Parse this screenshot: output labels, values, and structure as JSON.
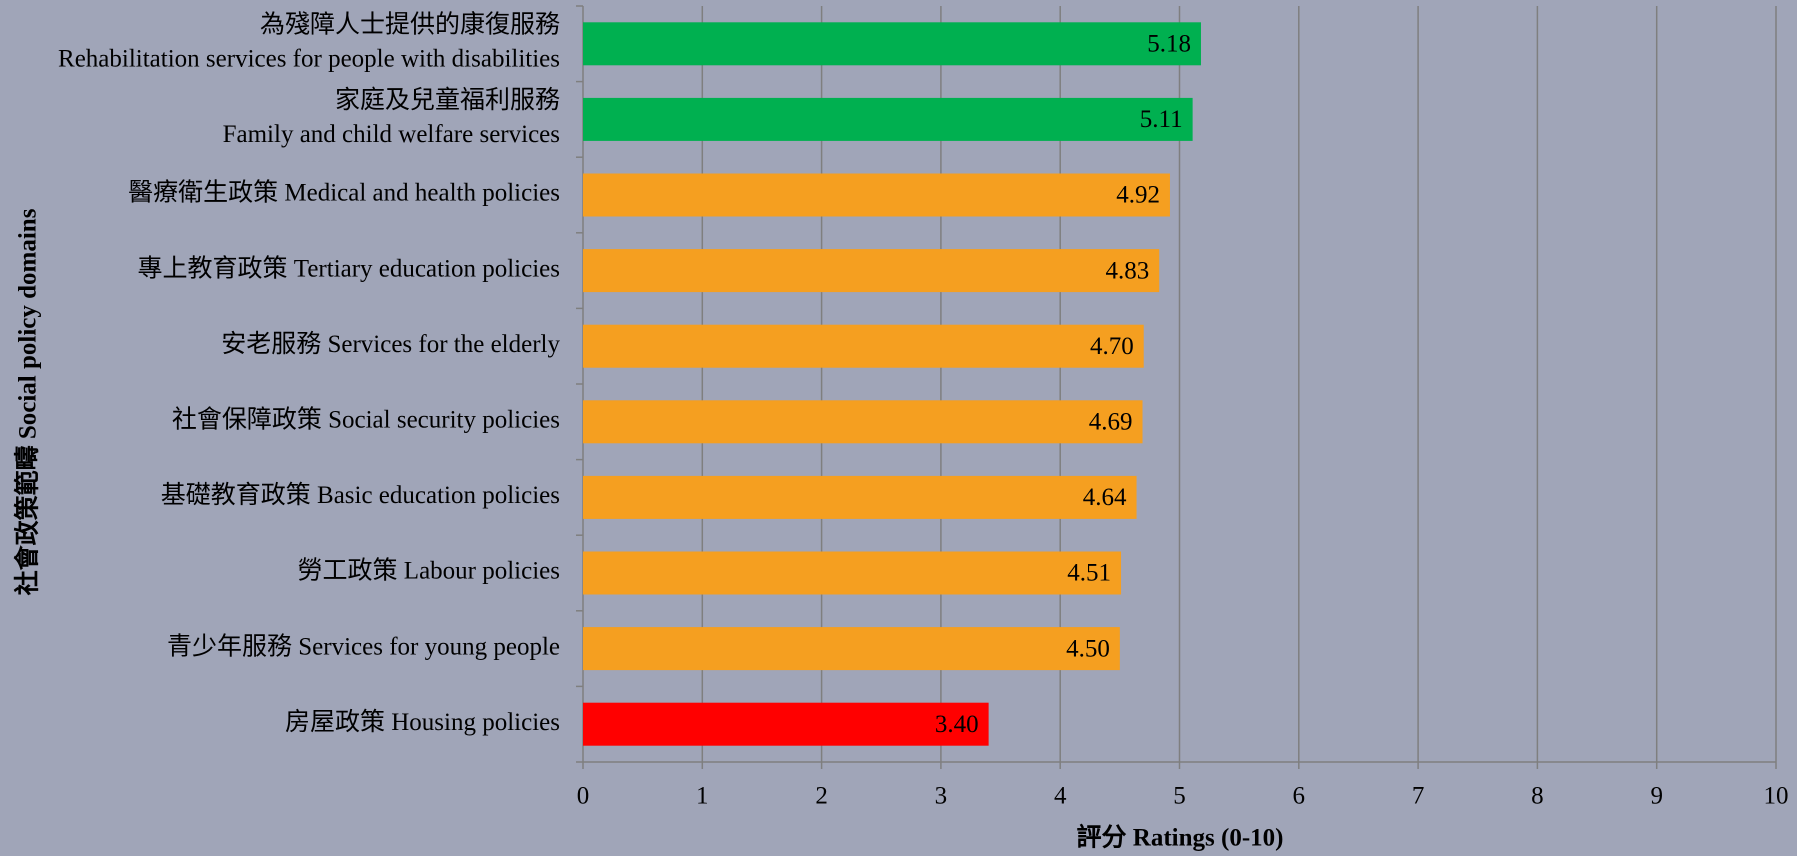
{
  "chart_data": {
    "type": "bar",
    "orientation": "horizontal",
    "categories": [
      [
        "為殘障人士提供的康復服務",
        "Rehabilitation services for people with disabilities"
      ],
      [
        "家庭及兒童福利服務",
        "Family and child welfare services"
      ],
      [
        "醫療衛生政策 Medical and health policies"
      ],
      [
        "專上教育政策 Tertiary education policies"
      ],
      [
        "安老服務 Services for the elderly"
      ],
      [
        "社會保障政策 Social security policies"
      ],
      [
        "基礎教育政策 Basic education policies"
      ],
      [
        "勞工政策 Labour policies"
      ],
      [
        "青少年服務  Services for young people"
      ],
      [
        "房屋政策 Housing policies"
      ]
    ],
    "values": [
      5.18,
      5.11,
      4.92,
      4.83,
      4.7,
      4.69,
      4.64,
      4.51,
      4.5,
      3.4
    ],
    "value_labels": [
      "5.18",
      "5.11",
      "4.92",
      "4.83",
      "4.70",
      "4.69",
      "4.64",
      "4.51",
      "4.50",
      "3.40"
    ],
    "colors": [
      "#00b050",
      "#00b050",
      "#f59f20",
      "#f59f20",
      "#f59f20",
      "#f59f20",
      "#f59f20",
      "#f59f20",
      "#f59f20",
      "#ff0000"
    ],
    "xlim": [
      0,
      10
    ],
    "xticks": [
      0,
      1,
      2,
      3,
      4,
      5,
      6,
      7,
      8,
      9,
      10
    ],
    "grid": true,
    "x_label": "評分 Ratings (0-10)",
    "y_label": "社會政策範疇 Social policy domains"
  }
}
